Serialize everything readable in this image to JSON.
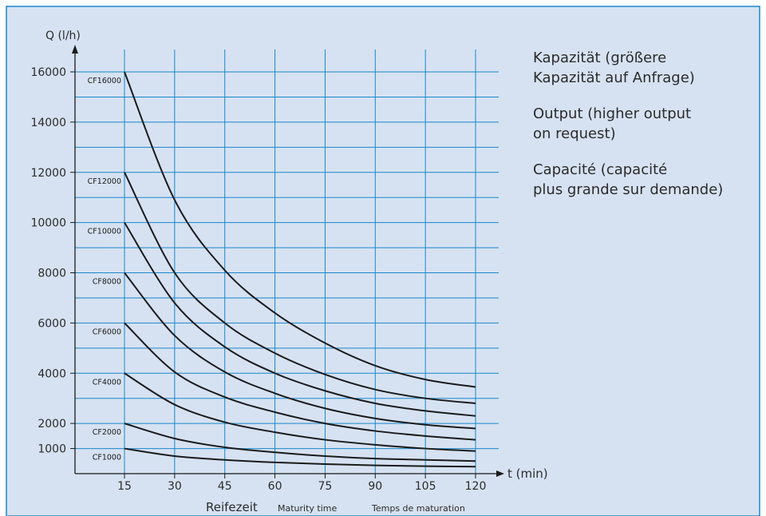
{
  "chart_data": {
    "type": "line",
    "title": "",
    "ylabel": "Q (l/h)",
    "xlabel": "t (min)",
    "x_ticks": [
      15,
      30,
      45,
      60,
      75,
      90,
      105,
      120
    ],
    "y_ticks": [
      1000,
      2000,
      4000,
      6000,
      8000,
      10000,
      12000,
      14000,
      16000
    ],
    "xlim": [
      0,
      120
    ],
    "ylim": [
      0,
      16000
    ],
    "grid": true,
    "x_sublabels": {
      "de": "Reifezeit",
      "en": "Maturity time",
      "fr": "Temps de maturation"
    },
    "series": [
      {
        "name": "CF16000",
        "x": [
          15,
          30,
          45,
          60,
          75,
          90,
          105,
          120
        ],
        "values": [
          16000,
          10900,
          8100,
          6400,
          5200,
          4300,
          3750,
          3450
        ]
      },
      {
        "name": "CF12000",
        "x": [
          15,
          30,
          45,
          60,
          75,
          90,
          105,
          120
        ],
        "values": [
          12000,
          8000,
          6000,
          4800,
          3950,
          3350,
          3000,
          2800
        ]
      },
      {
        "name": "CF10000",
        "x": [
          15,
          30,
          45,
          60,
          75,
          90,
          105,
          120
        ],
        "values": [
          10000,
          6800,
          5050,
          4000,
          3300,
          2800,
          2500,
          2300
        ]
      },
      {
        "name": "CF8000",
        "x": [
          15,
          30,
          45,
          60,
          75,
          90,
          105,
          120
        ],
        "values": [
          8000,
          5500,
          4050,
          3200,
          2600,
          2200,
          1950,
          1800
        ]
      },
      {
        "name": "CF6000",
        "x": [
          15,
          30,
          45,
          60,
          75,
          90,
          105,
          120
        ],
        "values": [
          6000,
          4050,
          3050,
          2450,
          2000,
          1700,
          1500,
          1350
        ]
      },
      {
        "name": "CF4000",
        "x": [
          15,
          30,
          45,
          60,
          75,
          90,
          105,
          120
        ],
        "values": [
          4000,
          2750,
          2050,
          1650,
          1350,
          1150,
          1000,
          900
        ]
      },
      {
        "name": "CF2000",
        "x": [
          15,
          30,
          45,
          60,
          75,
          90,
          105,
          120
        ],
        "values": [
          2000,
          1400,
          1050,
          850,
          700,
          600,
          550,
          500
        ]
      },
      {
        "name": "CF1000",
        "x": [
          15,
          30,
          45,
          60,
          75,
          90,
          105,
          120
        ],
        "values": [
          1000,
          700,
          550,
          450,
          380,
          330,
          300,
          280
        ]
      }
    ],
    "legend_text": {
      "de": [
        "Kapazität (größere",
        "Kapazität auf Anfrage)"
      ],
      "en": [
        "Output (higher output",
        "on request)"
      ],
      "fr": [
        "Capacité (capacité",
        "plus grande sur demande)"
      ]
    },
    "colors": {
      "background": "#d6e2f2",
      "border": "#1a87c9",
      "grid": "#1a87c9",
      "curve": "#1a1a1a",
      "text": "#2b2b2b"
    }
  }
}
